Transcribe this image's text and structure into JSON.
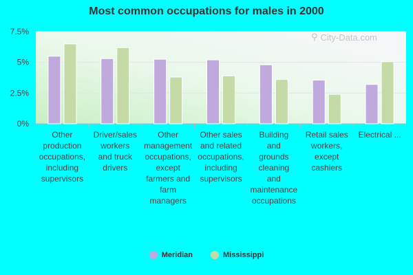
{
  "title": "Most common occupations for males in 2000",
  "watermark": "City-Data.com",
  "colors": {
    "Meridian": "#c0a9dc",
    "Mississippi": "#c5dba7",
    "background": "#00ffff"
  },
  "chart_data": {
    "type": "bar",
    "title": "Most common occupations for males in 2000",
    "categories": [
      "Other production occupations, including supervisors",
      "Driver/sales workers and truck drivers",
      "Other management occupations, except farmers and farm managers",
      "Other sales and related occupations, including supervisors",
      "Building and grounds cleaning and maintenance occupations",
      "Retail sales workers, except cashiers",
      "Electrical ..."
    ],
    "category_lines": [
      [
        "Other",
        "production",
        "occupations,",
        "including",
        "supervisors"
      ],
      [
        "Driver/sales",
        "workers",
        "and truck",
        "drivers"
      ],
      [
        "Other",
        "management",
        "occupations,",
        "except",
        "farmers and",
        "farm",
        "managers"
      ],
      [
        "Other sales",
        "and related",
        "occupations,",
        "including",
        "supervisors"
      ],
      [
        "Building",
        "and",
        "grounds",
        "cleaning",
        "and",
        "maintenance",
        "occupations"
      ],
      [
        "Retail sales",
        "workers,",
        "except",
        "cashiers"
      ],
      [
        "Electrical ..."
      ]
    ],
    "series": [
      {
        "name": "Meridian",
        "values": [
          5.5,
          5.3,
          5.25,
          5.2,
          4.8,
          3.55,
          3.2
        ]
      },
      {
        "name": "Mississippi",
        "values": [
          6.5,
          6.2,
          3.8,
          3.9,
          3.6,
          2.4,
          5.05
        ]
      }
    ],
    "y_ticks": [
      "0%",
      "2.5%",
      "5%",
      "7.5%"
    ],
    "y_tick_values": [
      0,
      2.5,
      5,
      7.5
    ],
    "ylim": [
      0,
      7.5
    ],
    "grid": true,
    "legend": "bottom-center"
  }
}
